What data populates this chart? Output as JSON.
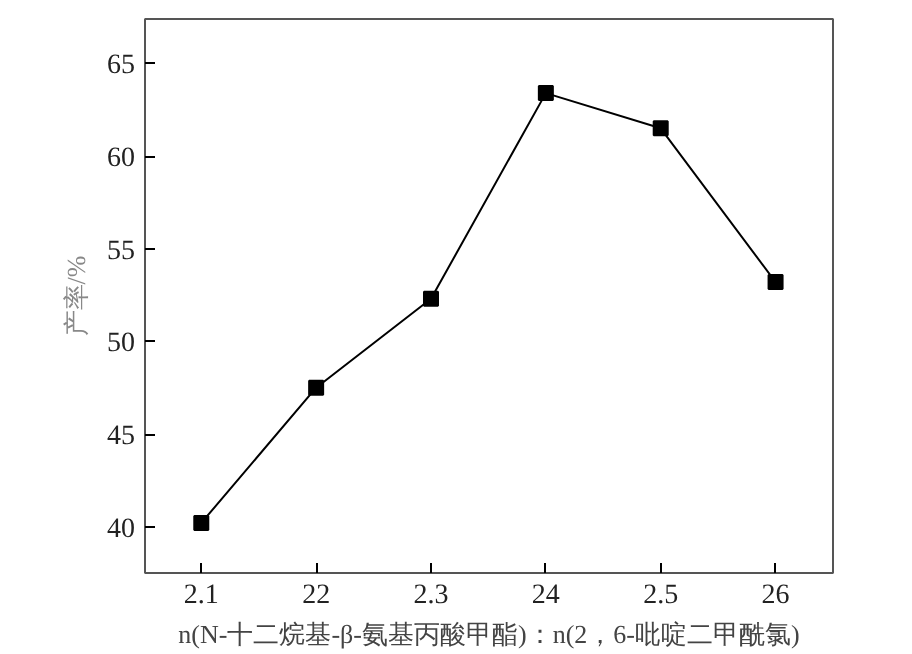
{
  "chart_data": {
    "type": "line",
    "xlabel": "n(N-十二烷基-β-氨基丙酸甲酯)：n(2，6-吡啶二甲酰氯)",
    "ylabel": "产率/%",
    "categories": [
      "2.1",
      "22",
      "2.3",
      "24",
      "2.5",
      "26"
    ],
    "series": [
      {
        "color": "#000000",
        "values": [
          40.2,
          47.5,
          52.3,
          63.4,
          61.5,
          53.2
        ]
      }
    ],
    "ylim": [
      37.5,
      67.4
    ],
    "yticks": [
      40,
      45,
      50,
      55,
      60,
      65
    ],
    "marker": "square",
    "line_style": "solid",
    "grid": false
  }
}
